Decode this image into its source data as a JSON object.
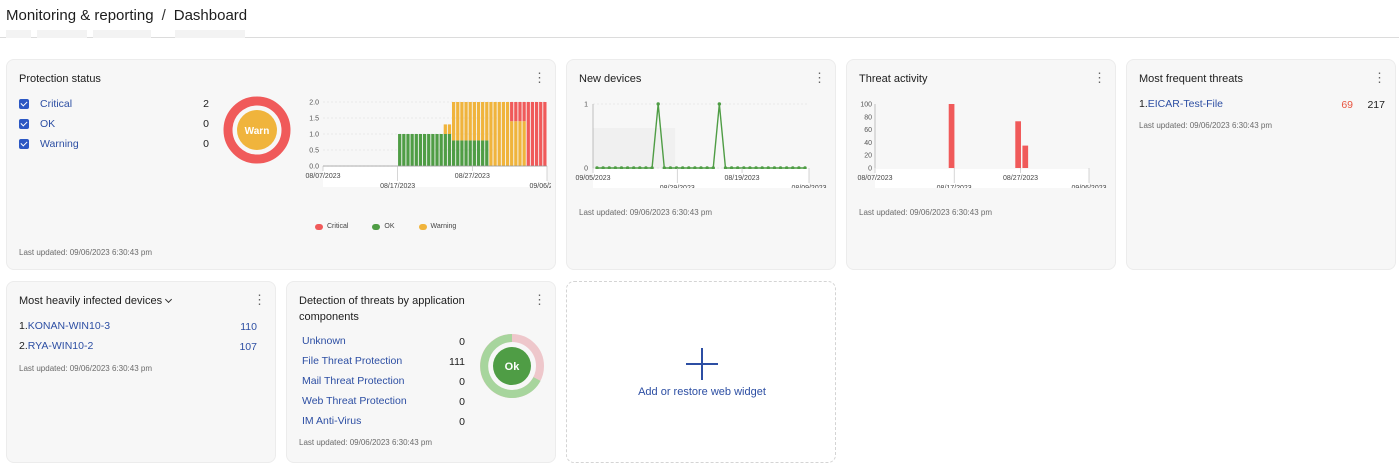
{
  "breadcrumb": {
    "parent": "Monitoring & reporting",
    "separator": "/",
    "current": "Dashboard"
  },
  "colors": {
    "critical": "#f05a5a",
    "ok": "#4f9d45",
    "warning": "#f0b43c",
    "link": "#2c4ea3"
  },
  "protection_status": {
    "title": "Protection status",
    "items": [
      {
        "label": "Critical",
        "count": "2"
      },
      {
        "label": "OK",
        "count": "0"
      },
      {
        "label": "Warning",
        "count": "0"
      }
    ],
    "donut_label": "Warn",
    "updated": "Last updated: 09/06/2023 6:30:43 pm"
  },
  "new_devices": {
    "title": "New devices",
    "updated": "Last updated: 09/06/2023 6:30:43 pm"
  },
  "threat_activity": {
    "title": "Threat activity",
    "updated": "Last updated: 09/06/2023 6:30:43 pm"
  },
  "frequent_threats": {
    "title": "Most frequent threats",
    "items": [
      {
        "index": "1.",
        "name": "EICAR-Test-File",
        "count_red": "69",
        "count": "217"
      }
    ],
    "updated": "Last updated: 09/06/2023 6:30:43 pm"
  },
  "infected_devices": {
    "title": "Most heavily infected devices",
    "items": [
      {
        "index": "1.",
        "name": "KONAN-WIN10-3",
        "count": "110"
      },
      {
        "index": "2.",
        "name": "RYA-WIN10-2",
        "count": "107"
      }
    ],
    "updated": "Last updated: 09/06/2023 6:30:43 pm"
  },
  "detection": {
    "title_line1": "Detection of threats by application",
    "title_line2": "components",
    "items": [
      {
        "label": "Unknown",
        "count": "0"
      },
      {
        "label": "File Threat Protection",
        "count": "111"
      },
      {
        "label": "Mail Threat Protection",
        "count": "0"
      },
      {
        "label": "Web Threat Protection",
        "count": "0"
      },
      {
        "label": "IM Anti-Virus",
        "count": "0"
      }
    ],
    "donut_label": "Ok",
    "updated": "Last updated: 09/06/2023 6:30:43 pm"
  },
  "add_widget": {
    "label": "Add or restore web widget"
  },
  "chart_data": [
    {
      "type": "bar",
      "id": "protection",
      "x_ticks": [
        "08/07/2023",
        "08/17/2023",
        "08/27/2023",
        "09/06/2023"
      ],
      "y_ticks": [
        "2.0",
        "1.5",
        "1.0",
        "0.5",
        "0.0"
      ],
      "ylim": [
        0,
        2
      ],
      "series": [
        {
          "name": "Critical",
          "values": [
            0,
            0,
            0,
            0,
            0,
            0,
            0,
            0,
            0,
            0,
            0,
            0,
            0,
            0,
            0,
            0,
            0,
            0,
            0,
            0,
            0,
            0,
            0,
            0,
            0,
            0,
            0,
            0,
            0,
            0,
            0,
            0,
            0,
            0,
            0,
            0,
            0,
            0,
            0,
            0,
            0,
            0,
            0,
            0,
            0,
            0.6,
            0.6,
            0.6,
            0.6,
            2,
            2,
            2,
            2,
            2
          ]
        },
        {
          "name": "OK",
          "values": [
            0,
            0,
            0,
            0,
            0,
            0,
            0,
            0,
            0,
            0,
            0,
            0,
            0,
            0,
            0,
            0,
            0,
            0,
            1,
            1,
            1,
            1,
            1,
            1,
            1,
            1,
            1,
            1,
            1,
            1,
            1,
            0.8,
            0.8,
            0.8,
            0.8,
            0.8,
            0.8,
            0.8,
            0.8,
            0.8,
            0,
            0,
            0,
            0,
            0,
            0,
            0,
            0,
            0,
            0,
            0,
            0,
            0,
            0
          ]
        },
        {
          "name": "Warning",
          "values": [
            0,
            0,
            0,
            0,
            0,
            0,
            0,
            0,
            0,
            0,
            0,
            0,
            0,
            0,
            0,
            0,
            0,
            0,
            0,
            0,
            0,
            0,
            0,
            0,
            0,
            0,
            0,
            0,
            0,
            0.3,
            0.3,
            1.2,
            1.2,
            1.2,
            1.2,
            1.2,
            1.2,
            1.2,
            1.2,
            1.2,
            2,
            2,
            2,
            2,
            2,
            1.4,
            1.4,
            1.4,
            1.4,
            0,
            0,
            0,
            0,
            0
          ]
        }
      ],
      "legend": [
        "Critical",
        "OK",
        "Warning"
      ]
    },
    {
      "type": "line",
      "id": "new_devices",
      "x_ticks": [
        "09/05/2023",
        "08/29/2023",
        "08/19/2023",
        "08/09/2023"
      ],
      "y_ticks": [
        "1",
        "0"
      ],
      "ylim": [
        0,
        1
      ],
      "values": [
        0,
        0,
        0,
        0,
        0,
        0,
        0,
        0,
        0,
        0,
        1,
        0,
        0,
        0,
        0,
        0,
        0,
        0,
        0,
        0,
        1,
        0,
        0,
        0,
        0,
        0,
        0,
        0,
        0,
        0,
        0,
        0,
        0,
        0,
        0
      ]
    },
    {
      "type": "bar",
      "id": "threat_activity",
      "x_ticks": [
        "08/07/2023",
        "08/17/2023",
        "08/27/2023",
        "09/06/2023"
      ],
      "y_ticks": [
        "100",
        "80",
        "60",
        "40",
        "20",
        "0"
      ],
      "ylim": [
        0,
        100
      ],
      "values": [
        0,
        0,
        0,
        0,
        0,
        0,
        0,
        0,
        0,
        0,
        0,
        0,
        0,
        0,
        0,
        0,
        0,
        0,
        0,
        0,
        0,
        0,
        0,
        0,
        0,
        0,
        0,
        0,
        0,
        0,
        0,
        0,
        0,
        0,
        0,
        0,
        0,
        0,
        0,
        0,
        0,
        0,
        0,
        0,
        0,
        0,
        0,
        0,
        0,
        0,
        0,
        0,
        0,
        0,
        0,
        0,
        0,
        0,
        0,
        0,
        0,
        0,
        0,
        0,
        0,
        0,
        0,
        0,
        0,
        0,
        0,
        0,
        0,
        0,
        0,
        0,
        0,
        0,
        0,
        0,
        0,
        0,
        0,
        0,
        0,
        0,
        0,
        0,
        0,
        0
      ]
    },
    {
      "type": "pie",
      "id": "protection_donut",
      "categories": [
        "Critical",
        "OK",
        "Warning"
      ],
      "values": [
        2,
        0,
        0
      ]
    },
    {
      "type": "pie",
      "id": "detection_donut",
      "categories": [
        "Unknown",
        "File Threat Protection",
        "Mail Threat Protection",
        "Web Threat Protection",
        "IM Anti-Virus"
      ],
      "values": [
        0,
        111,
        0,
        0,
        0
      ]
    }
  ]
}
